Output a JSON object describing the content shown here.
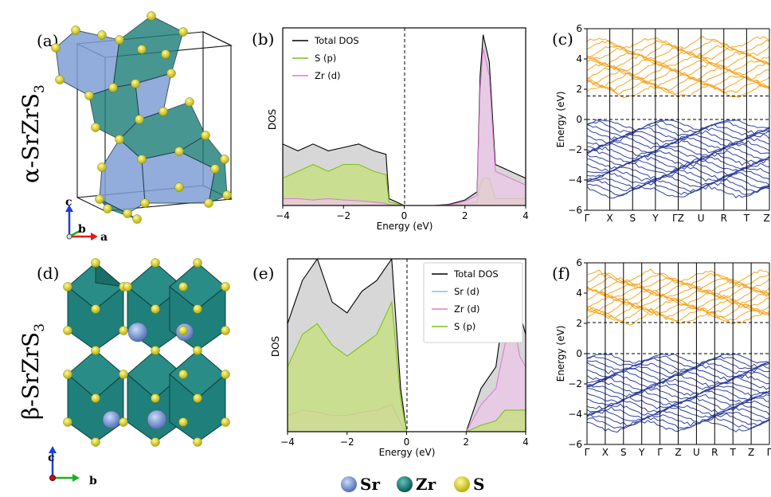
{
  "panels": {
    "a": "(a)",
    "b": "(b)",
    "c": "(c)",
    "d": "(d)",
    "e": "(e)",
    "f": "(f)"
  },
  "structures": {
    "alpha": {
      "name": "α-SrZrS",
      "sub": "3",
      "axes": [
        "c",
        "b",
        "a"
      ]
    },
    "beta": {
      "name": "β-SrZrS",
      "sub": "3",
      "axes": [
        "c",
        "b"
      ]
    }
  },
  "atom_legend": [
    {
      "label": "Sr",
      "color": "#7f9fd6"
    },
    {
      "label": "Zr",
      "color": "#1f7f7a"
    },
    {
      "label": "S",
      "color": "#d8d21c"
    }
  ],
  "colors": {
    "total": "#000000",
    "s_p": "#7fbf1f",
    "zr_d": "#d77fd3",
    "sr_d": "#7fc3e6",
    "conduction": "#f5a623",
    "valence": "#2f3f9e",
    "sr_atom": "#7f9fd6",
    "zr_poly": "#1f7f7a",
    "s_atom": "#d8d21c",
    "alpha_poly": "#7f9fd6"
  },
  "chart_data": [
    {
      "id": "b",
      "type": "area",
      "xlabel": "Energy (eV)",
      "ylabel": "DOS",
      "xlim": [
        -4,
        4
      ],
      "xticks": [
        "−4",
        "−2",
        "0",
        "2",
        "4"
      ],
      "legend": [
        "Total DOS",
        "S (p)",
        "Zr (d)"
      ],
      "legend_position": "top-left",
      "x": [
        -4,
        -3.5,
        -3,
        -2.5,
        -2,
        -1.5,
        -1,
        -0.6,
        -0.5,
        0,
        1,
        1.5,
        2,
        2.4,
        2.5,
        2.6,
        2.8,
        3,
        3.5,
        4
      ],
      "series": [
        {
          "name": "Total DOS",
          "values": [
            9,
            8,
            9,
            8,
            8.5,
            9,
            8,
            7.5,
            1,
            0,
            0,
            0.2,
            0.8,
            2,
            19,
            25,
            21,
            6,
            5,
            4
          ]
        },
        {
          "name": "S (p)",
          "values": [
            4,
            5,
            6,
            5,
            6,
            6,
            5,
            4.5,
            0.5,
            0,
            0,
            0.1,
            0.2,
            0.5,
            3,
            4,
            4,
            1,
            1,
            1
          ]
        },
        {
          "name": "Zr (d)",
          "values": [
            1,
            1,
            0.8,
            1,
            0.8,
            0.7,
            0.5,
            0.3,
            0.1,
            0,
            0,
            0.1,
            0.6,
            1.5,
            17,
            23,
            19,
            5,
            4,
            3
          ]
        }
      ]
    },
    {
      "id": "c",
      "type": "line",
      "ylabel": "Energy (eV)",
      "ylim": [
        -6,
        6
      ],
      "yticks": [
        "6",
        "4",
        "2",
        "0",
        "−2",
        "−4",
        "−6"
      ],
      "kpath": [
        "Γ",
        "X",
        "S",
        "Y",
        "ΓZ",
        "U",
        "R",
        "T",
        "ZΓ"
      ],
      "cbm": 1.55,
      "vbm": 0
    },
    {
      "id": "e",
      "type": "area",
      "xlabel": "Energy (eV)",
      "ylabel": "DOS",
      "xlim": [
        -4,
        4
      ],
      "xticks": [
        "−4",
        "−2",
        "0",
        "2",
        "4"
      ],
      "legend": [
        "Total DOS",
        "Sr (d)",
        "Zr (d)",
        "S (p)"
      ],
      "legend_position": "top-right",
      "x": [
        -4,
        -3.5,
        -3,
        -2.5,
        -2,
        -1.5,
        -1,
        -0.5,
        -0.2,
        0,
        1,
        2,
        2.5,
        3,
        3.3,
        3.6,
        3.8,
        4
      ],
      "series": [
        {
          "name": "Total DOS",
          "values": [
            10,
            14,
            16,
            12,
            11,
            13,
            14,
            16,
            4,
            0,
            0,
            0,
            4,
            6,
            12,
            15,
            11,
            9
          ]
        },
        {
          "name": "Sr (d)",
          "values": [
            0.3,
            0.3,
            0.3,
            0.3,
            0.3,
            0.3,
            0.3,
            0.4,
            0.2,
            0,
            0,
            0,
            0.4,
            0.8,
            1,
            1,
            1,
            1
          ]
        },
        {
          "name": "Zr (d)",
          "values": [
            1.5,
            2,
            1.8,
            1.5,
            1.5,
            1.8,
            2,
            2.5,
            0.8,
            0,
            0,
            0,
            2.5,
            4,
            8,
            10,
            7,
            6
          ]
        },
        {
          "name": "S (p)",
          "values": [
            6,
            9,
            10,
            8,
            7,
            8,
            9,
            12,
            3,
            0,
            0,
            0,
            0.6,
            1,
            2,
            2,
            2,
            2
          ]
        }
      ]
    },
    {
      "id": "f",
      "type": "line",
      "ylabel": "Energy (eV)",
      "ylim": [
        -6,
        6
      ],
      "yticks": [
        "6",
        "4",
        "2",
        "0",
        "−2",
        "−4",
        "−6"
      ],
      "kpath": [
        "Γ",
        "X",
        "S",
        "Y",
        "Γ",
        "Z",
        "U",
        "R",
        "T",
        "Z",
        "Γ"
      ],
      "cbm": 2.05,
      "vbm": 0
    }
  ]
}
